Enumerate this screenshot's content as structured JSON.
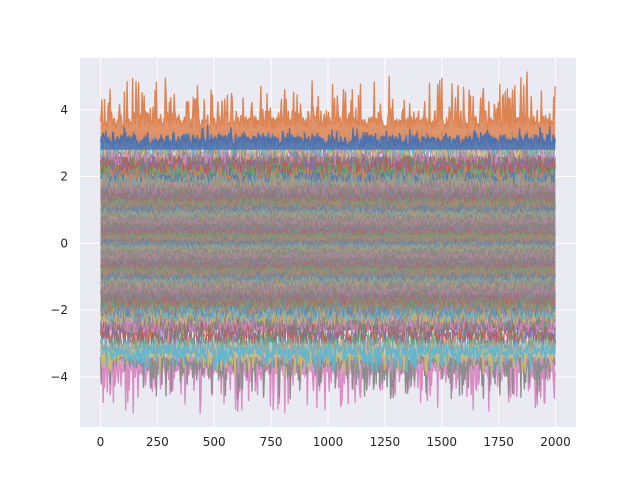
{
  "chart_data": {
    "type": "line",
    "title": "",
    "xlabel": "",
    "ylabel": "",
    "xlim": [
      -90,
      2090
    ],
    "ylim": [
      -5.5,
      5.55
    ],
    "x_ticks": [
      0,
      250,
      500,
      750,
      1000,
      1250,
      1500,
      1750,
      2000
    ],
    "x_tick_labels": [
      "0",
      "250",
      "500",
      "750",
      "1000",
      "1250",
      "1500",
      "1750",
      "2000"
    ],
    "y_ticks": [
      -4,
      -2,
      0,
      2,
      4
    ],
    "y_tick_labels": [
      "−4",
      "−2",
      "0",
      "2",
      "4"
    ],
    "grid": true,
    "legend": "none",
    "style": "seaborn-darkgrid",
    "n_points_per_series": 2001,
    "x_range": [
      0,
      2000
    ],
    "series_description": "many overlapping noise series spanning about -3 to 3",
    "series": [
      {
        "color": "#dd8452",
        "baseline": 3.6,
        "min": 3.0,
        "max": 5.1
      },
      {
        "color": "#4c72b0",
        "baseline": 3.05,
        "min": 2.8,
        "max": 3.4
      },
      {
        "color": "#da8bc3",
        "baseline": -3.75,
        "min": -5.0,
        "max": -3.4
      },
      {
        "color": "#8c8c8c",
        "baseline": -3.5,
        "min": -4.6,
        "max": -3.1
      },
      {
        "color": "#ccb974",
        "baseline": -3.3,
        "min": -3.9,
        "max": -3.0
      },
      {
        "color": "#64b5cd",
        "baseline": -3.2,
        "min": -3.8,
        "max": -2.9
      }
    ]
  },
  "colors": {
    "background": "#eaeaf2",
    "grid": "#ffffff",
    "palette": [
      "#4c72b0",
      "#dd8452",
      "#55a868",
      "#c44e52",
      "#8172b3",
      "#937860",
      "#da8bc3",
      "#8c8c8c",
      "#ccb974",
      "#64b5cd"
    ]
  }
}
